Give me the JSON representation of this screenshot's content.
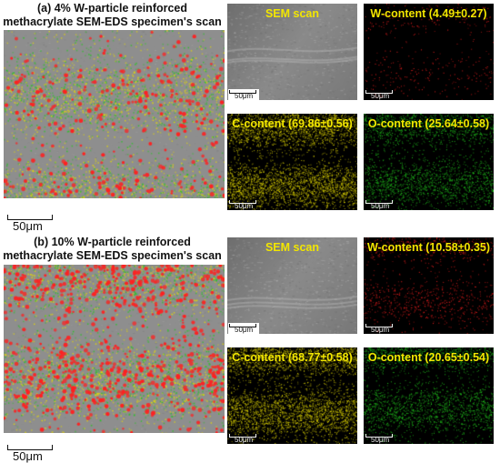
{
  "panels": [
    {
      "title_line1": "(a) 4% W-particle reinforced",
      "title_line2": "methacrylate SEM-EDS specimen's scan",
      "scale_bar": "50μm",
      "tiles": {
        "sem": "SEM scan",
        "w": "W-content (4.49±0.27)",
        "c": "C-content (69.86±0.56)",
        "o": "O-content (25.64±0.58)"
      },
      "tile_scale_bar": "50μm"
    },
    {
      "title_line1": "(b) 10% W-particle reinforced",
      "title_line2": "methacrylate SEM-EDS specimen's scan",
      "scale_bar": "50μm",
      "tiles": {
        "sem": "SEM scan",
        "w": "W-content (10.58±0.35)",
        "c": "C-content (68.77±0.58)",
        "o": "O-content (20.65±0.54)"
      },
      "tile_scale_bar": "50μm"
    }
  ],
  "colors": {
    "label_text": "#f2e600",
    "tungsten": "#ff2020",
    "carbon": "#e6dc00",
    "oxygen": "#22c81e",
    "sem_gray": "#8f8f8f"
  }
}
